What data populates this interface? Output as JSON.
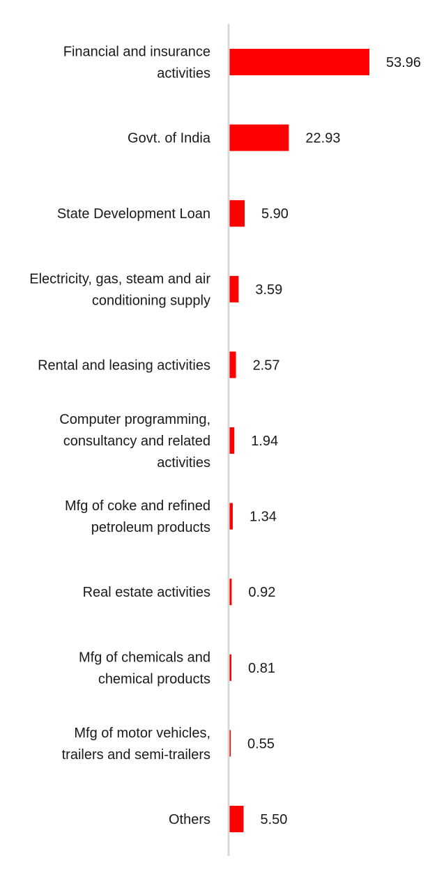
{
  "chart_data": {
    "type": "bar",
    "orientation": "horizontal",
    "categories": [
      [
        "Financial and insurance",
        "activities"
      ],
      [
        "Govt. of India"
      ],
      [
        "State Development Loan"
      ],
      [
        "Electricity, gas, steam and air",
        "conditioning supply"
      ],
      [
        "Rental and leasing activities"
      ],
      [
        "Computer programming,",
        "consultancy and related",
        "activities"
      ],
      [
        "Mfg of coke and refined",
        "petroleum products"
      ],
      [
        "Real estate activities"
      ],
      [
        "Mfg of chemicals and",
        "chemical products"
      ],
      [
        "Mfg of motor vehicles,",
        "trailers and semi-trailers"
      ],
      [
        "Others"
      ]
    ],
    "values": [
      53.96,
      22.93,
      5.9,
      3.59,
      2.57,
      1.94,
      1.34,
      0.92,
      0.81,
      0.55,
      5.5
    ],
    "value_labels": [
      "53.96",
      "22.93",
      "5.90",
      "3.59",
      "2.57",
      "1.94",
      "1.34",
      "0.92",
      "0.81",
      "0.55",
      "5.50"
    ],
    "xlim": [
      0,
      60
    ],
    "bar_color": "#ff0000",
    "axis_color": "#d9d9d9",
    "grid": false,
    "legend": "none",
    "title": "",
    "xlabel": "",
    "ylabel": ""
  }
}
